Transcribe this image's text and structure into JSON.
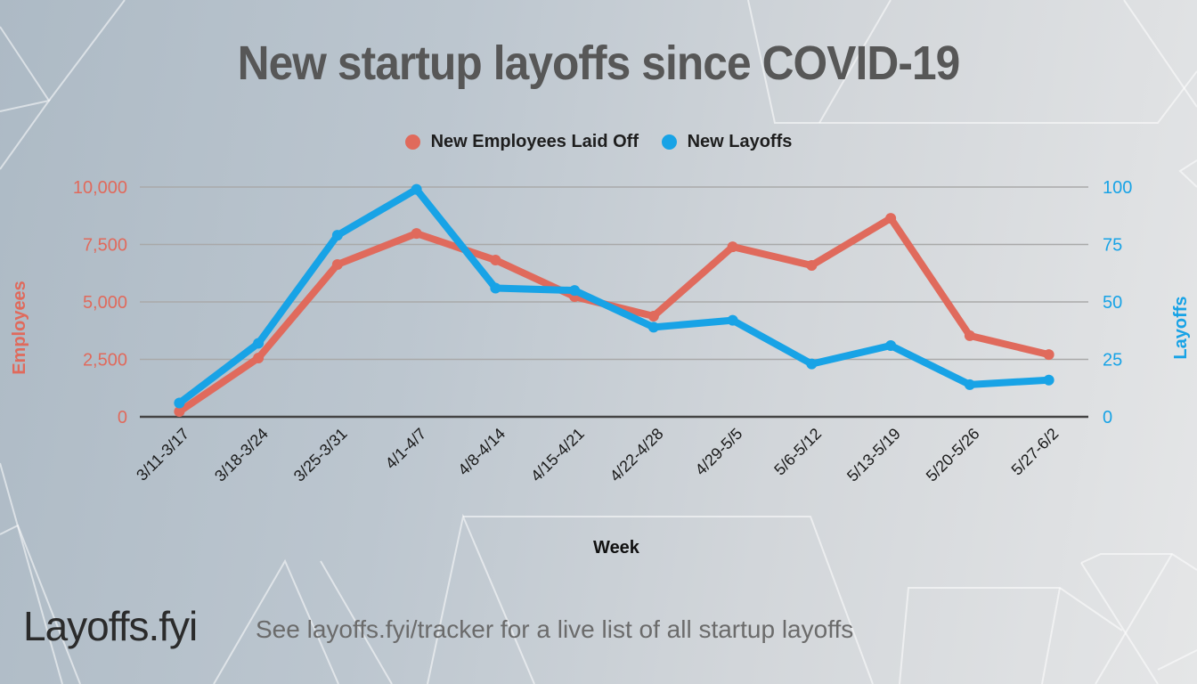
{
  "title": "New startup layoffs since COVID-19",
  "footer": {
    "logo": "Layoffs.fyi",
    "note": "See layoffs.fyi/tracker for a live list of all startup layoffs"
  },
  "colors": {
    "employees": "#e06a5c",
    "layoffs": "#18a3e6",
    "title": "#575757"
  },
  "chart_data": {
    "type": "line",
    "title": "New startup layoffs since COVID-19",
    "xlabel": "Week",
    "ylabel": "Employees",
    "y2label": "Layoffs",
    "legend_position": "top-center",
    "grid": true,
    "categories": [
      "3/11-3/17",
      "3/18-3/24",
      "3/25-3/31",
      "4/1-4/7",
      "4/8-4/14",
      "4/15-4/21",
      "4/22-4/28",
      "4/29-5/5",
      "5/6-5/12",
      "5/13-5/19",
      "5/20-5/26",
      "5/27-6/2"
    ],
    "ylim": [
      0,
      10000
    ],
    "y2lim": [
      0,
      100
    ],
    "yticks": [
      "0",
      "2,500",
      "5,000",
      "7,500",
      "10,000"
    ],
    "y2ticks": [
      "0",
      "25",
      "50",
      "75",
      "100"
    ],
    "series": [
      {
        "name": "New Employees Laid Off",
        "axis": "left",
        "values": [
          230,
          2560,
          6630,
          7980,
          6820,
          5230,
          4380,
          7400,
          6590,
          8640,
          3530,
          2710
        ]
      },
      {
        "name": "New Layoffs",
        "axis": "right",
        "values": [
          6,
          32,
          79,
          99,
          56,
          55,
          39,
          42,
          23,
          31,
          14,
          16
        ]
      }
    ]
  }
}
